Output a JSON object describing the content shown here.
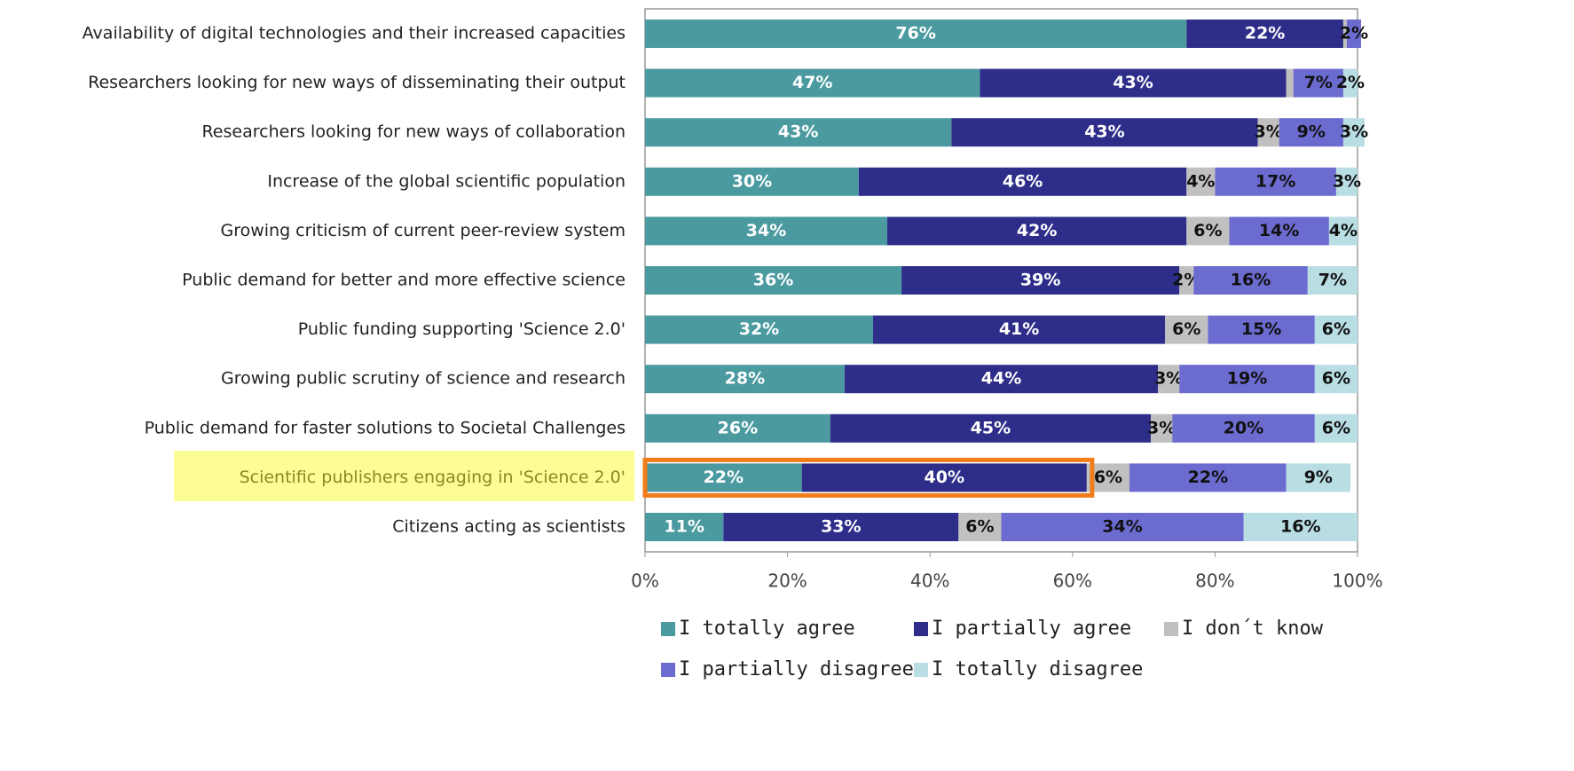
{
  "chart_data": {
    "type": "stacked_barh",
    "categories": [
      "Availability of  digital technologies  and their increased  capacities",
      "Researchers looking  for new ways of  disseminating their  output",
      "Researchers looking  for new ways of  collaboration",
      "Increase of the  global scientific  population",
      "Growing criticism of  current peer-review  system",
      "Public demand for  better and more  effective science",
      "Public funding  supporting 'Science  2.0'",
      "Growing public  scrutiny of science  and research",
      "Public demand for  faster solutions to  Societal Challenges",
      "Scientific  publishers engaging  in 'Science 2.0'",
      "Citizens acting as  scientists"
    ],
    "series": [
      {
        "name": "I totally agree",
        "color": "#4a9aa0",
        "values": [
          76,
          47,
          43,
          30,
          34,
          36,
          32,
          28,
          26,
          22,
          11
        ],
        "value_labels": [
          "76%",
          "47%",
          "43%",
          "30%",
          "34%",
          "36%",
          "32%",
          "28%",
          "26%",
          "22%",
          "11%"
        ]
      },
      {
        "name": "I partially agree",
        "color": "#2e2e8a",
        "values": [
          22,
          43,
          43,
          46,
          42,
          39,
          41,
          44,
          45,
          40,
          33
        ],
        "value_labels": [
          "22%",
          "43%",
          "43%",
          "46%",
          "42%",
          "39%",
          "41%",
          "44%",
          "45%",
          "40%",
          "33%"
        ]
      },
      {
        "name": "I don´t know",
        "color": "#c0c0c0",
        "values": [
          0.5,
          1,
          3,
          4,
          6,
          2,
          6,
          3,
          3,
          6,
          6
        ],
        "value_labels": [
          null,
          null,
          "3%",
          "4%",
          "6%",
          "2%",
          "6%",
          "3%",
          "3%",
          "6%",
          "6%"
        ]
      },
      {
        "name": "I partially disagree",
        "color": "#6b6bd0",
        "values": [
          2,
          7,
          9,
          17,
          14,
          16,
          15,
          19,
          20,
          22,
          34
        ],
        "value_labels": [
          "2%",
          "7%",
          "9%",
          "17%",
          "14%",
          "16%",
          "15%",
          "19%",
          "20%",
          "22%",
          "34%"
        ]
      },
      {
        "name": "I totally disagree",
        "color": "#b8dde3",
        "values": [
          0,
          2,
          3,
          3,
          4,
          7,
          6,
          6,
          6,
          9,
          16
        ],
        "value_labels": [
          null,
          "2%",
          "3%",
          "3%",
          "4%",
          "7%",
          "6%",
          "6%",
          "6%",
          "9%",
          "16%"
        ]
      }
    ],
    "xlim": [
      0,
      100
    ],
    "xticks": [
      {
        "value": 0,
        "label": "0%"
      },
      {
        "value": 20,
        "label": "20%"
      },
      {
        "value": 40,
        "label": "40%"
      },
      {
        "value": 60,
        "label": "60%"
      },
      {
        "value": 80,
        "label": "80%"
      },
      {
        "value": 100,
        "label": "100%"
      }
    ]
  }
}
